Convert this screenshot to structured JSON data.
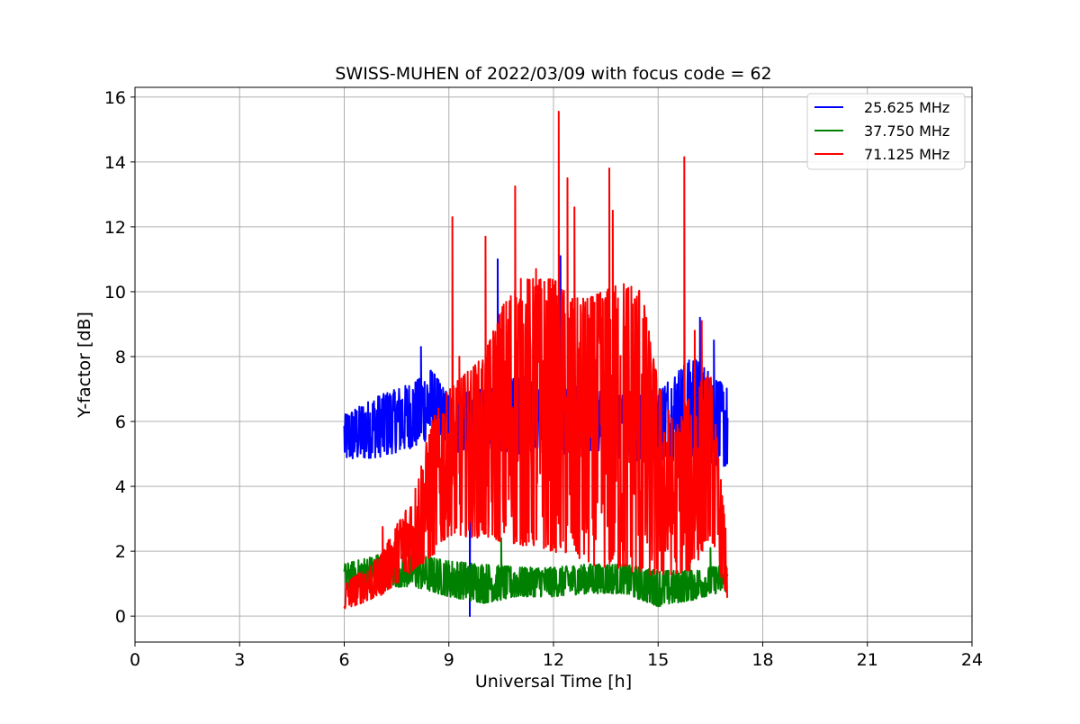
{
  "chart_data": {
    "type": "line",
    "title": "SWISS-MUHEN of 2022/03/09 with focus code = 62",
    "xlabel": "Universal Time [h]",
    "ylabel": "Y-factor [dB]",
    "xlim": [
      0,
      24
    ],
    "ylim": [
      -0.8,
      16.3
    ],
    "xticks": [
      0,
      3,
      6,
      9,
      12,
      15,
      18,
      21,
      24
    ],
    "yticks": [
      0,
      2,
      4,
      6,
      8,
      10,
      12,
      14,
      16
    ],
    "grid": true,
    "legend_position": "top-right",
    "series": [
      {
        "name": "25.625 MHz",
        "color": "#0000ff",
        "x_range": [
          6.0,
          17.0
        ],
        "envelope_low": [
          [
            6.0,
            4.8
          ],
          [
            7.0,
            4.9
          ],
          [
            8.0,
            5.2
          ],
          [
            8.5,
            5.5
          ],
          [
            9.0,
            5.0
          ],
          [
            10.0,
            5.2
          ],
          [
            11.0,
            5.0
          ],
          [
            12.0,
            5.0
          ],
          [
            13.0,
            5.0
          ],
          [
            14.0,
            4.8
          ],
          [
            15.0,
            4.8
          ],
          [
            16.0,
            4.7
          ],
          [
            17.0,
            4.6
          ]
        ],
        "envelope_high": [
          [
            6.0,
            6.2
          ],
          [
            7.0,
            6.8
          ],
          [
            8.0,
            7.2
          ],
          [
            8.5,
            7.6
          ],
          [
            9.0,
            6.8
          ],
          [
            10.0,
            7.0
          ],
          [
            11.0,
            7.4
          ],
          [
            12.0,
            7.2
          ],
          [
            13.0,
            7.0
          ],
          [
            14.0,
            6.8
          ],
          [
            15.0,
            7.0
          ],
          [
            16.0,
            8.0
          ],
          [
            17.0,
            7.0
          ]
        ],
        "spikes": [
          [
            8.2,
            8.3
          ],
          [
            9.6,
            0.0
          ],
          [
            10.4,
            11.0
          ],
          [
            12.2,
            11.1
          ],
          [
            16.2,
            9.2
          ],
          [
            16.6,
            8.5
          ]
        ]
      },
      {
        "name": "37.750 MHz",
        "color": "#008000",
        "x_range": [
          6.0,
          17.0
        ],
        "envelope_low": [
          [
            6.0,
            0.8
          ],
          [
            7.0,
            0.9
          ],
          [
            8.0,
            0.9
          ],
          [
            9.0,
            0.6
          ],
          [
            10.0,
            0.4
          ],
          [
            11.0,
            0.6
          ],
          [
            12.0,
            0.6
          ],
          [
            13.0,
            0.7
          ],
          [
            14.0,
            0.7
          ],
          [
            15.0,
            0.3
          ],
          [
            16.0,
            0.5
          ],
          [
            17.0,
            0.8
          ]
        ],
        "envelope_high": [
          [
            6.0,
            1.6
          ],
          [
            7.0,
            1.9
          ],
          [
            8.0,
            1.9
          ],
          [
            9.0,
            1.7
          ],
          [
            10.0,
            1.6
          ],
          [
            11.0,
            1.5
          ],
          [
            12.0,
            1.5
          ],
          [
            13.0,
            1.6
          ],
          [
            14.0,
            1.6
          ],
          [
            15.0,
            1.4
          ],
          [
            16.0,
            1.4
          ],
          [
            17.0,
            1.6
          ]
        ],
        "spikes": [
          [
            10.5,
            2.4
          ],
          [
            15.9,
            2.9
          ],
          [
            16.5,
            2.1
          ]
        ]
      },
      {
        "name": "71.125 MHz",
        "color": "#ff0000",
        "x_range": [
          6.0,
          17.0
        ],
        "envelope_low": [
          [
            6.0,
            0.2
          ],
          [
            7.0,
            0.6
          ],
          [
            8.0,
            1.4
          ],
          [
            8.5,
            1.8
          ],
          [
            9.0,
            2.5
          ],
          [
            10.0,
            2.4
          ],
          [
            11.0,
            2.2
          ],
          [
            12.0,
            2.0
          ],
          [
            13.0,
            1.6
          ],
          [
            14.0,
            1.4
          ],
          [
            15.0,
            1.2
          ],
          [
            16.0,
            1.4
          ],
          [
            16.5,
            2.5
          ],
          [
            17.0,
            0.4
          ]
        ],
        "envelope_high": [
          [
            6.0,
            1.0
          ],
          [
            7.0,
            1.8
          ],
          [
            8.0,
            3.8
          ],
          [
            8.5,
            6.0
          ],
          [
            9.0,
            7.0
          ],
          [
            10.0,
            8.0
          ],
          [
            10.5,
            9.5
          ],
          [
            11.0,
            10.4
          ],
          [
            12.0,
            10.4
          ],
          [
            12.5,
            9.8
          ],
          [
            13.0,
            9.8
          ],
          [
            14.0,
            10.3
          ],
          [
            14.5,
            10.2
          ],
          [
            15.0,
            7.2
          ],
          [
            15.5,
            5.8
          ],
          [
            16.0,
            7.0
          ],
          [
            16.5,
            7.5
          ],
          [
            17.0,
            2.0
          ]
        ],
        "spikes": [
          [
            7.1,
            2.75
          ],
          [
            9.1,
            12.3
          ],
          [
            9.3,
            8.0
          ],
          [
            10.05,
            11.7
          ],
          [
            10.35,
            8.2
          ],
          [
            10.9,
            13.25
          ],
          [
            11.5,
            10.7
          ],
          [
            12.15,
            15.55
          ],
          [
            12.4,
            13.5
          ],
          [
            12.6,
            12.6
          ],
          [
            13.6,
            13.8
          ],
          [
            13.7,
            12.5
          ],
          [
            15.75,
            14.15
          ],
          [
            16.05,
            8.8
          ],
          [
            16.25,
            9.1
          ]
        ]
      }
    ]
  }
}
